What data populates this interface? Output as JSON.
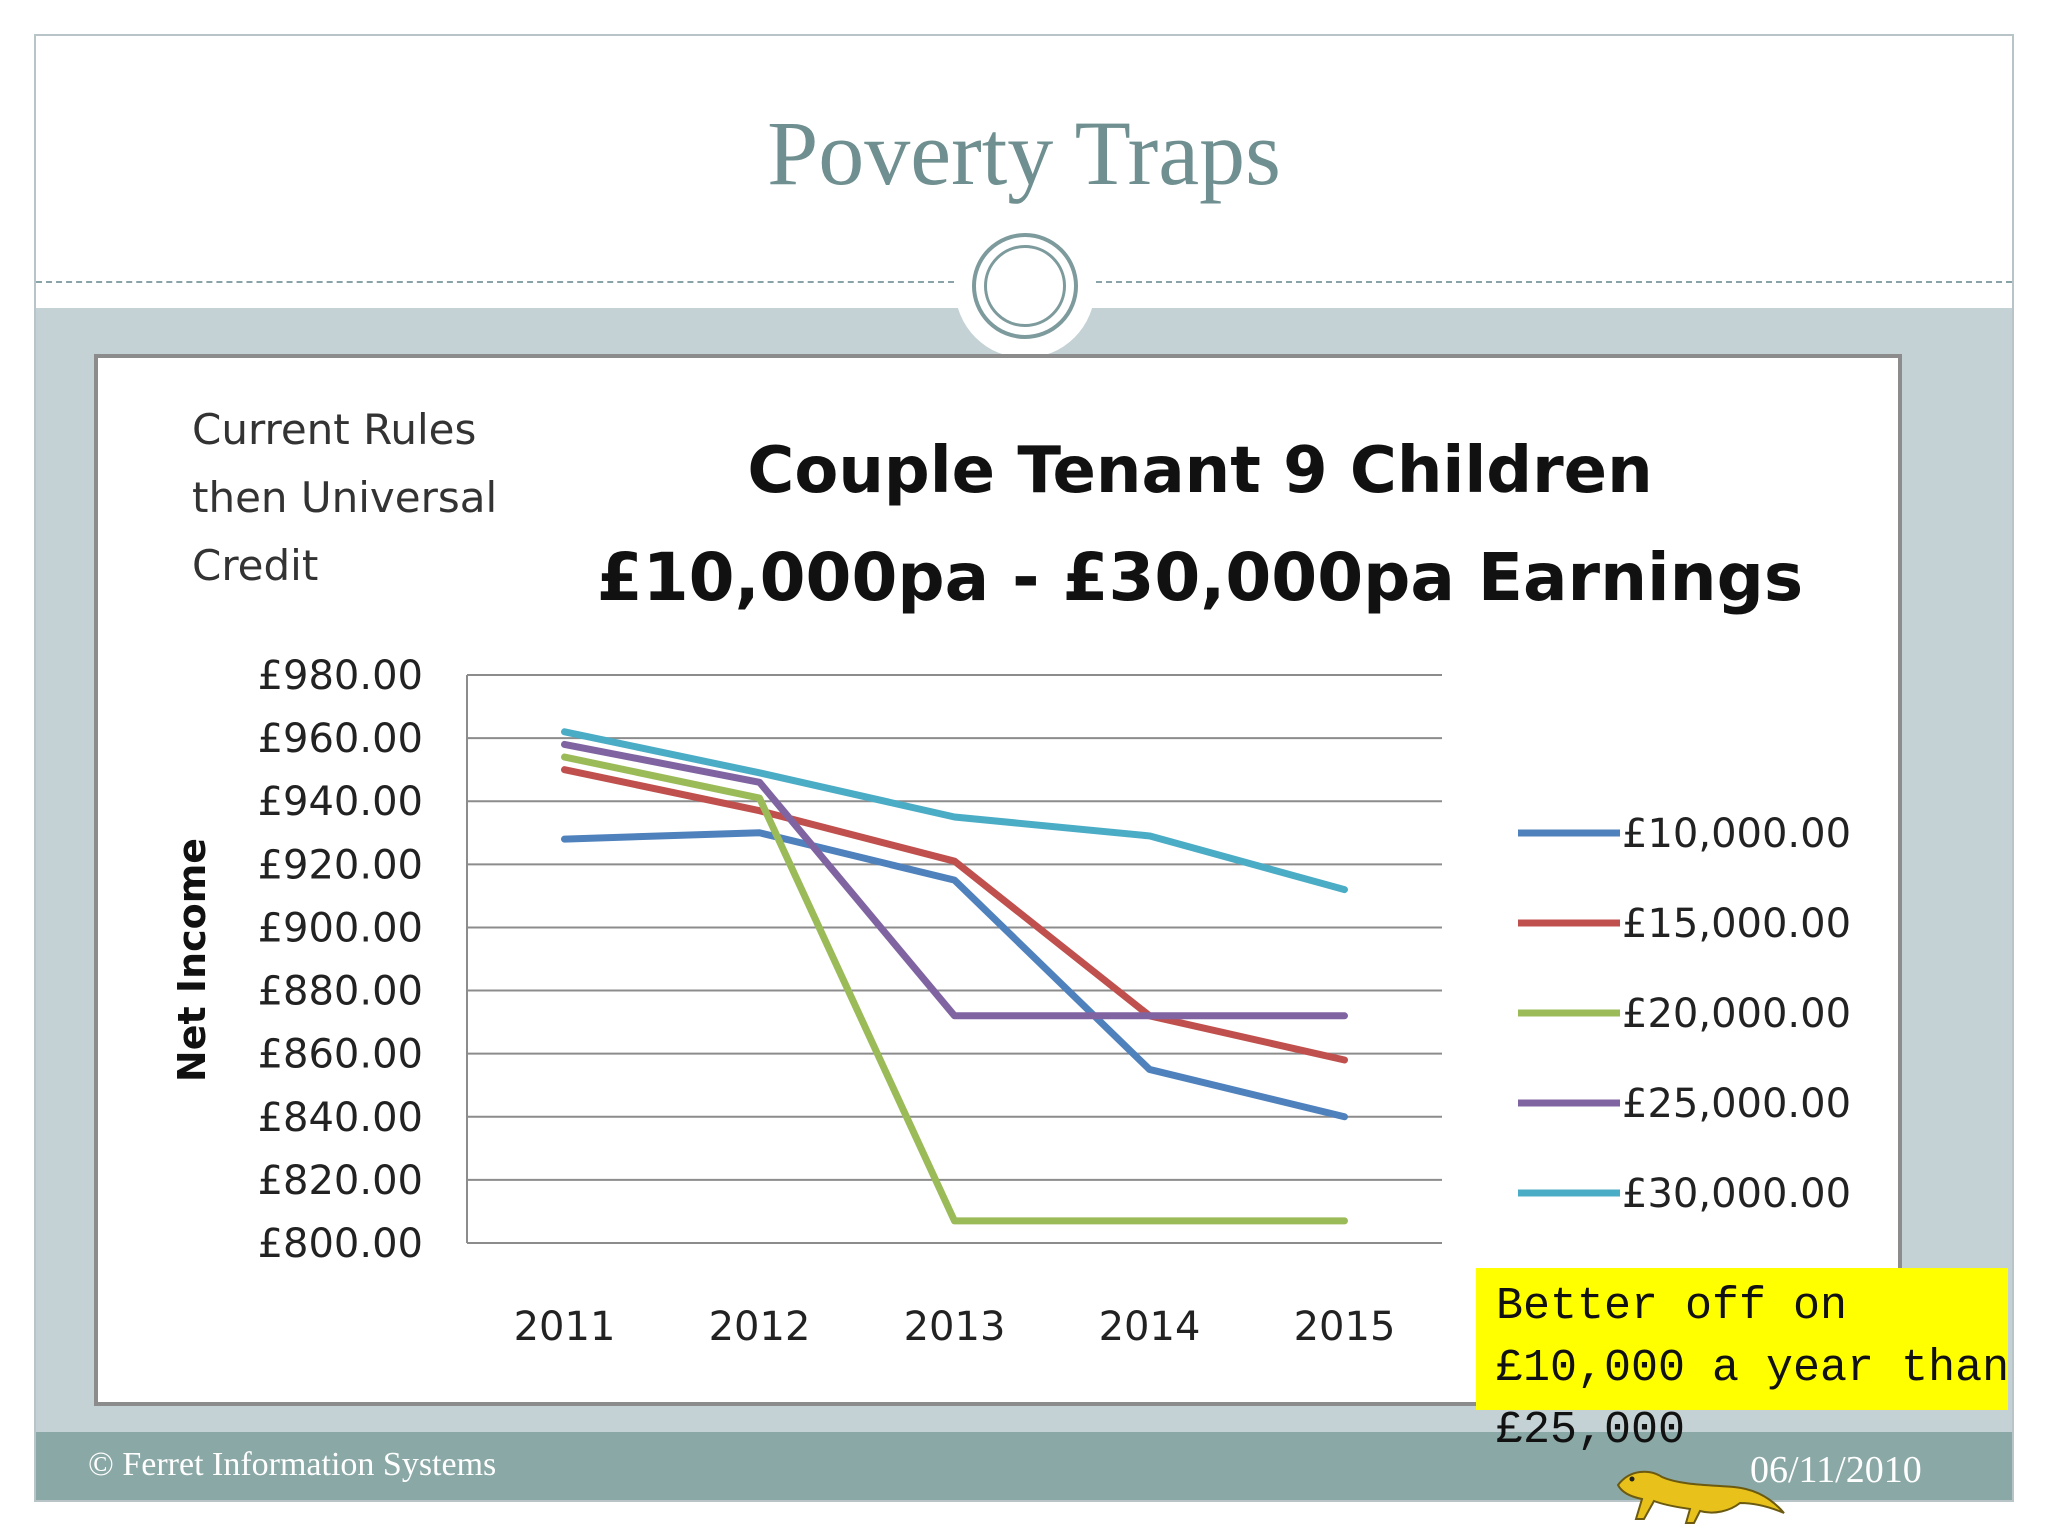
{
  "slide": {
    "title": "Poverty Traps",
    "footer_left": "© Ferret Information Systems",
    "footer_date": "06/11/2010",
    "callout": "Better off on £10,000 a year than £25,000"
  },
  "colors": {
    "title": "#6f8f90",
    "band": "#c4d2d6",
    "footer": "#8aa8a6",
    "callout": "#ffff00"
  },
  "chart_data": {
    "type": "line",
    "note_text": [
      "Current Rules",
      "then Universal",
      "Credit"
    ],
    "title": [
      "Couple Tenant 9 Children",
      "£10,000pa - £30,000pa Earnings"
    ],
    "xlabel": "",
    "ylabel": "Net Income",
    "x": [
      "2011",
      "2012",
      "2013",
      "2014",
      "2015"
    ],
    "ylim": [
      800,
      980
    ],
    "yticks": [
      "£980.00",
      "£960.00",
      "£940.00",
      "£920.00",
      "£900.00",
      "£880.00",
      "£860.00",
      "£840.00",
      "£820.00",
      "£800.00"
    ],
    "grid": true,
    "legend_position": "right",
    "series": [
      {
        "name": "£10,000.00",
        "color": "#4f81bd",
        "values": [
          928,
          930,
          915,
          855,
          840
        ]
      },
      {
        "name": "£15,000.00",
        "color": "#c0504d",
        "values": [
          950,
          937,
          921,
          872,
          858
        ]
      },
      {
        "name": "£20,000.00",
        "color": "#9bbb59",
        "values": [
          954,
          941,
          807,
          807,
          807
        ]
      },
      {
        "name": "£25,000.00",
        "color": "#8064a2",
        "values": [
          958,
          946,
          872,
          872,
          872
        ]
      },
      {
        "name": "£30,000.00",
        "color": "#4bacc6",
        "values": [
          962,
          949,
          935,
          929,
          912
        ]
      }
    ]
  }
}
